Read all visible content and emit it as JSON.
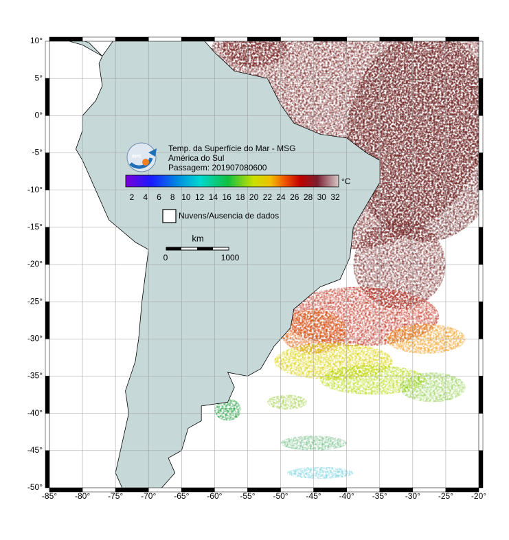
{
  "header": {
    "title": "Temp. da Superfície do Mar - MSG",
    "region": "América do Sul",
    "pass": "Passagem: 201907080600"
  },
  "colorbar": {
    "ticks": [
      "2",
      "4",
      "6",
      "8",
      "10",
      "12",
      "14",
      "16",
      "18",
      "20",
      "22",
      "24",
      "26",
      "28",
      "30",
      "32"
    ],
    "unit": "°C"
  },
  "legend": {
    "cloud": "Nuvens/Ausencia de dados"
  },
  "scale": {
    "unit": "km",
    "start": "0",
    "end": "1000"
  },
  "axes": {
    "lon_ticks": [
      "-85°",
      "-80°",
      "-75°",
      "-70°",
      "-65°",
      "-60°",
      "-55°",
      "-50°",
      "-45°",
      "-40°",
      "-35°",
      "-30°",
      "-25°",
      "-20°"
    ],
    "lat_ticks": [
      "10°",
      "5°",
      "0°",
      "-5°",
      "-10°",
      "-15°",
      "-20°",
      "-25°",
      "-30°",
      "-35°",
      "-40°",
      "-45°",
      "-50°"
    ]
  }
}
